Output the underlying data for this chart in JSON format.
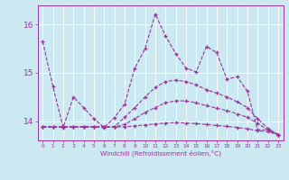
{
  "background_color": "#cce8f0",
  "grid_color": "#ffffff",
  "line_color": "#993399",
  "xlabel": "Windchill (Refroidissement éolien,°C)",
  "x": [
    0,
    1,
    2,
    3,
    4,
    5,
    6,
    7,
    8,
    9,
    10,
    11,
    12,
    13,
    14,
    15,
    16,
    17,
    18,
    19,
    20,
    21,
    22,
    23
  ],
  "ylim": [
    13.6,
    16.4
  ],
  "yticks": [
    14,
    15,
    16
  ],
  "y_main": [
    15.65,
    14.72,
    13.87,
    14.5,
    14.28,
    14.05,
    13.87,
    14.07,
    14.35,
    15.1,
    15.5,
    16.22,
    15.77,
    15.4,
    15.1,
    15.02,
    15.55,
    15.42,
    14.87,
    14.92,
    14.62,
    13.82,
    13.82,
    13.72
  ],
  "y_smooth3": [
    13.88,
    13.88,
    13.88,
    13.88,
    13.88,
    13.88,
    13.88,
    13.88,
    14.08,
    14.28,
    14.5,
    14.7,
    14.82,
    14.85,
    14.82,
    14.75,
    14.65,
    14.58,
    14.5,
    14.4,
    14.28,
    14.05,
    13.85,
    13.72
  ],
  "y_smooth2": [
    13.88,
    13.88,
    13.88,
    13.88,
    13.88,
    13.88,
    13.88,
    13.88,
    13.93,
    14.05,
    14.18,
    14.28,
    14.38,
    14.42,
    14.42,
    14.38,
    14.32,
    14.27,
    14.22,
    14.15,
    14.08,
    13.95,
    13.82,
    13.72
  ],
  "y_smooth1": [
    13.88,
    13.88,
    13.88,
    13.88,
    13.88,
    13.88,
    13.88,
    13.88,
    13.88,
    13.9,
    13.92,
    13.94,
    13.96,
    13.97,
    13.96,
    13.95,
    13.93,
    13.91,
    13.89,
    13.87,
    13.84,
    13.8,
    13.78,
    13.72
  ]
}
